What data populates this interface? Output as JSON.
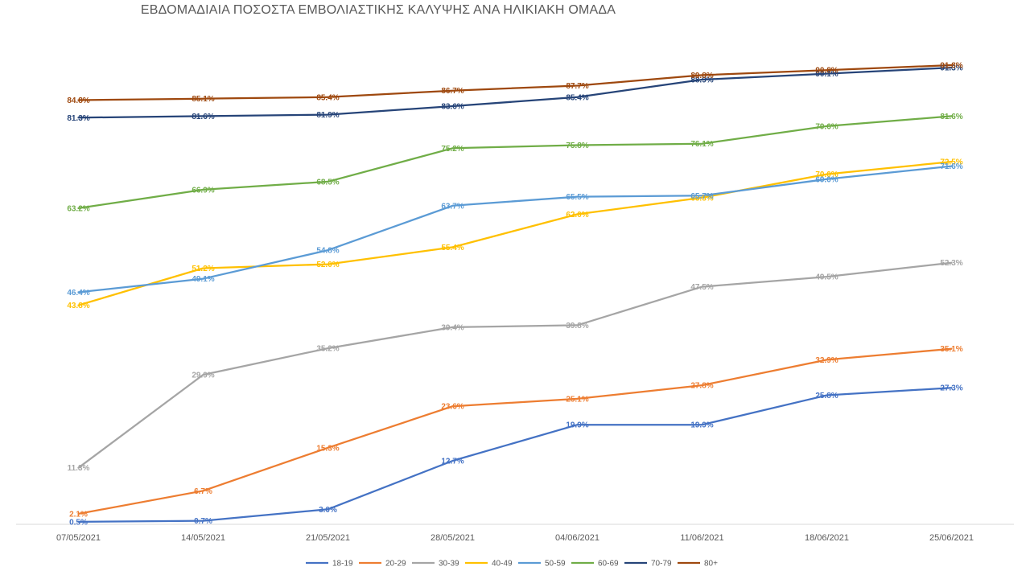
{
  "chart_data": {
    "type": "line",
    "title": "ΕΒΔΟΜΑΔΙΑΙΑ ΠΟΣΟΣΤΑ ΕΜΒΟΛΙΑΣΤΙΚΗΣ ΚΑΛΥΨΗΣ ΑΝΑ ΗΛΙΚΙΑΚΗ ΟΜΑΔΑ",
    "xlabel": "",
    "ylabel": "",
    "categories": [
      "07/05/2021",
      "14/05/2021",
      "21/05/2021",
      "28/05/2021",
      "04/06/2021",
      "11/06/2021",
      "18/06/2021",
      "25/06/2021"
    ],
    "ylim": [
      0,
      100
    ],
    "grid": false,
    "legend_position": "bottom",
    "series": [
      {
        "name": "18-19",
        "color": "#4472C4",
        "values": [
          0.5,
          0.7,
          3.0,
          12.7,
          19.9,
          19.9,
          25.8,
          27.3
        ],
        "labels": [
          "0.5%",
          "0.7%",
          "3.0%",
          "12.7%",
          "19.9%",
          "19.9%",
          "25.8%",
          "27.3%"
        ]
      },
      {
        "name": "20-29",
        "color": "#ED7D31",
        "values": [
          2.1,
          6.7,
          15.3,
          23.6,
          25.1,
          27.8,
          32.9,
          35.1
        ],
        "labels": [
          "2.1%",
          "6.7%",
          "15.3%",
          "23.6%",
          "25.1%",
          "27.8%",
          "32.9%",
          "35.1%"
        ]
      },
      {
        "name": "30-39",
        "color": "#A5A5A5",
        "values": [
          11.3,
          29.9,
          35.2,
          39.4,
          39.8,
          47.5,
          49.5,
          52.3
        ],
        "labels": [
          "11.3%",
          "29.9%",
          "35.2%",
          "39.4%",
          "39.8%",
          "47.5%",
          "49.5%",
          "52.3%"
        ]
      },
      {
        "name": "40-49",
        "color": "#FFC000",
        "values": [
          43.8,
          51.2,
          52.0,
          55.4,
          62.0,
          65.3,
          70.0,
          72.5
        ],
        "labels": [
          "43.8%",
          "51.2%",
          "52.0%",
          "55.4%",
          "62.0%",
          "65.3%",
          "70.0%",
          "72.5%"
        ]
      },
      {
        "name": "50-59",
        "color": "#5B9BD5",
        "values": [
          46.4,
          49.1,
          54.8,
          63.7,
          65.5,
          65.7,
          69.0,
          71.6
        ],
        "labels": [
          "46.4%",
          "49.1%",
          "54.8%",
          "63.7%",
          "65.5%",
          "65.7%",
          "69.0%",
          "71.6%"
        ]
      },
      {
        "name": "60-69",
        "color": "#70AD47",
        "values": [
          63.2,
          66.9,
          68.5,
          75.2,
          75.8,
          76.1,
          79.6,
          81.6
        ],
        "labels": [
          "63.2%",
          "66.9%",
          "68.5%",
          "75.2%",
          "75.8%",
          "76.1%",
          "79.6%",
          "81.6%"
        ]
      },
      {
        "name": "70-79",
        "color": "#264478",
        "values": [
          81.3,
          81.6,
          81.9,
          83.6,
          85.4,
          88.9,
          90.1,
          91.3
        ],
        "labels": [
          "81.3%",
          "81.6%",
          "81.9%",
          "83.6%",
          "85.4%",
          "88.9%",
          "90.1%",
          "91.3%"
        ]
      },
      {
        "name": "80+",
        "color": "#9E480E",
        "values": [
          84.8,
          85.1,
          85.4,
          86.7,
          87.7,
          89.8,
          90.8,
          91.8
        ],
        "labels": [
          "84.8%",
          "85.1%",
          "85.4%",
          "86.7%",
          "87.7%",
          "89.8%",
          "90.8%",
          "91.8%"
        ]
      }
    ]
  }
}
